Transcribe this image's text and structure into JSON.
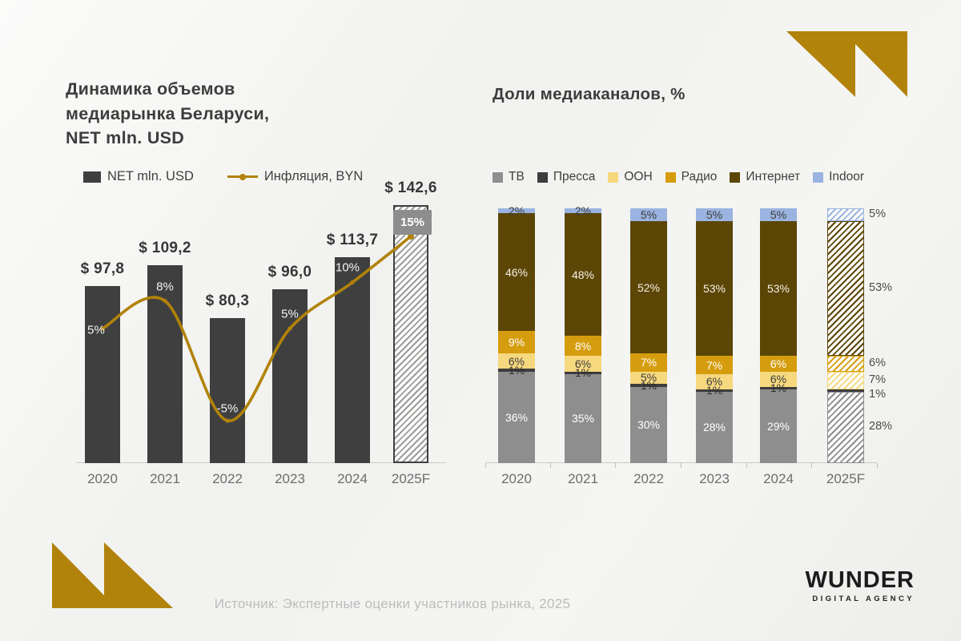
{
  "page": {
    "accent_gold": "#b1830a",
    "source_text": "Источник: Экспертные оценки участников рынка, 2025",
    "logo": {
      "name": "WUNDER",
      "subtitle": "DIGITAL AGENCY"
    }
  },
  "left_chart": {
    "title": "Динамика объемов\nмедиарынка Беларуси,\nNET mln. USD",
    "legend": [
      {
        "label": "NET mln. USD",
        "type": "square",
        "color": "#3f3f3f"
      },
      {
        "label": "Инфляция, BYN",
        "type": "line",
        "color": "#b1830a"
      }
    ]
  },
  "right_chart": {
    "title": "Доли медиаканалов, %"
  },
  "chart_data": [
    {
      "type": "bar",
      "subtype": "bar-with-line",
      "title": "Динамика объемов медиарынка Беларуси, NET mln. USD",
      "categories": [
        "2020",
        "2021",
        "2022",
        "2023",
        "2024",
        "2025F"
      ],
      "forecast_index": 5,
      "series": [
        {
          "key": "net",
          "name": "NET mln. USD",
          "kind": "bar",
          "color": "#3f3f3f",
          "values": [
            97.8,
            109.2,
            80.3,
            96.0,
            113.7,
            142.6
          ],
          "labels": [
            "$ 97,8",
            "$ 109,2",
            "$ 80,3",
            "$ 96,0",
            "$ 113,7",
            "$ 142,6"
          ]
        },
        {
          "key": "inflation",
          "name": "Инфляция, BYN",
          "kind": "line",
          "color": "#b1830a",
          "values": [
            5,
            8,
            -5,
            5,
            10,
            15
          ],
          "labels": [
            "5%",
            "8%",
            "-5%",
            "5%",
            "10%",
            "15%"
          ]
        }
      ],
      "legend_position": "top",
      "grid": false
    },
    {
      "type": "bar",
      "subtype": "stacked-100",
      "title": "Доли медиаканалов, %",
      "categories": [
        "2020",
        "2021",
        "2022",
        "2023",
        "2024",
        "2025F"
      ],
      "forecast_index": 5,
      "ylim": [
        0,
        100
      ],
      "series": [
        {
          "key": "tv",
          "name": "ТВ",
          "color": "#8e8e8e",
          "label_color": "#ffffff",
          "values": [
            36,
            35,
            30,
            28,
            29,
            28
          ]
        },
        {
          "key": "pressa",
          "name": "Пресса",
          "color": "#3d3d3d",
          "label_color": "#2e2e2e",
          "values": [
            1,
            1,
            1,
            1,
            1,
            1
          ]
        },
        {
          "key": "ooh",
          "name": "OOH",
          "color": "#f6d87e",
          "label_color": "#3c3c3c",
          "values": [
            6,
            6,
            5,
            6,
            6,
            7
          ]
        },
        {
          "key": "radio",
          "name": "Радио",
          "color": "#d59d0e",
          "label_color": "#ffffff",
          "values": [
            9,
            8,
            7,
            7,
            6,
            6
          ]
        },
        {
          "key": "internet",
          "name": "Интернет",
          "color": "#5c4605",
          "label_color": "#f5f0e4",
          "values": [
            46,
            48,
            52,
            53,
            53,
            53
          ]
        },
        {
          "key": "indoor",
          "name": "Indoor",
          "color": "#9ab3e0",
          "label_color": "#3c3c3c",
          "values": [
            2,
            2,
            5,
            5,
            5,
            5
          ]
        }
      ],
      "legend_position": "top",
      "grid": false
    }
  ]
}
